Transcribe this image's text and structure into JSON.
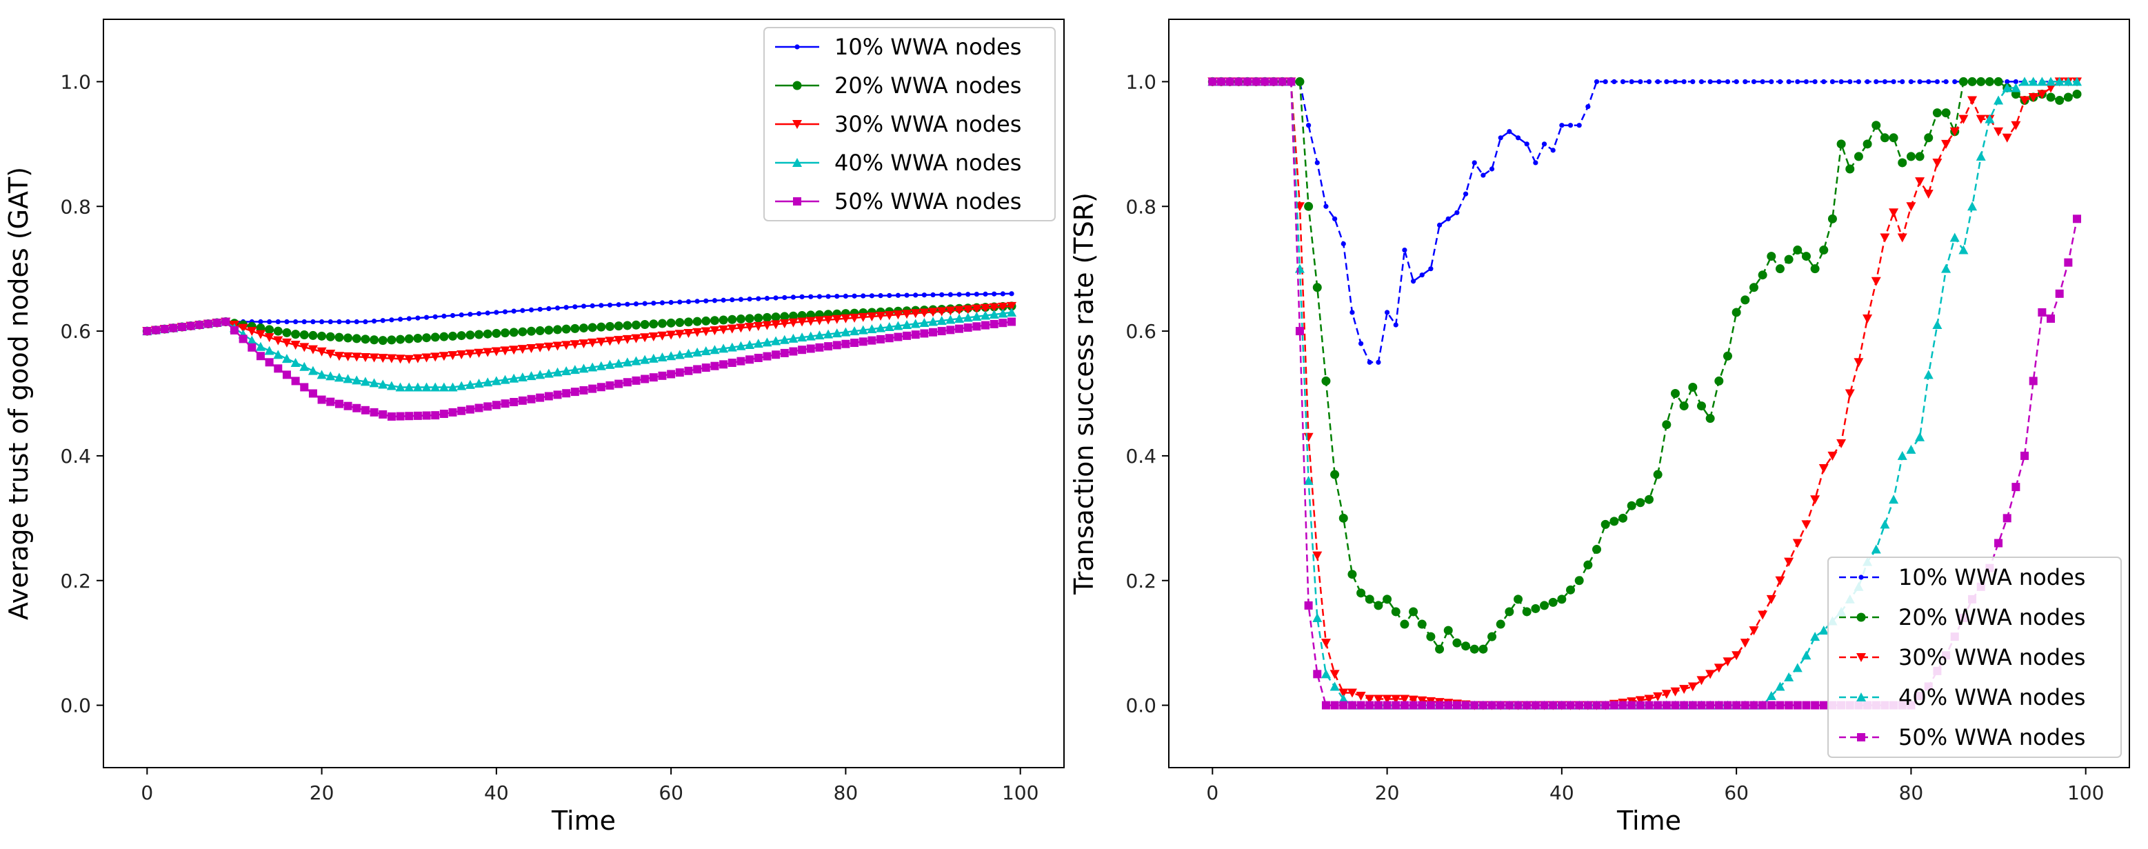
{
  "colors": {
    "10": "#0000ff",
    "20": "#008000",
    "30": "#ff0000",
    "40": "#00bfbf",
    "50": "#bf00bf"
  },
  "chart_data": [
    {
      "type": "line",
      "name": "gat",
      "xlabel": "Time",
      "ylabel": "Average trust of good nodes (GAT)",
      "xlim": [
        -5,
        105
      ],
      "ylim": [
        -0.1,
        1.1
      ],
      "xticks": [
        "0",
        "20",
        "40",
        "60",
        "80",
        "100"
      ],
      "yticks": [
        "0.0",
        "0.2",
        "0.4",
        "0.6",
        "0.8",
        "1.0"
      ],
      "legend_position": "top-right",
      "line_style": "solid",
      "series": [
        {
          "name": "10% WWA nodes",
          "marker": "dot",
          "color": "#0000ff",
          "keypoints": [
            [
              0,
              0.6
            ],
            [
              9,
              0.615
            ],
            [
              25,
              0.615
            ],
            [
              50,
              0.64
            ],
            [
              75,
              0.655
            ],
            [
              99,
              0.66
            ]
          ]
        },
        {
          "name": "20% WWA nodes",
          "marker": "circle",
          "color": "#008000",
          "keypoints": [
            [
              0,
              0.6
            ],
            [
              9,
              0.615
            ],
            [
              17,
              0.595
            ],
            [
              27,
              0.585
            ],
            [
              50,
              0.605
            ],
            [
              75,
              0.625
            ],
            [
              99,
              0.64
            ]
          ]
        },
        {
          "name": "30% WWA nodes",
          "marker": "triangle-down",
          "color": "#ff0000",
          "keypoints": [
            [
              0,
              0.6
            ],
            [
              9,
              0.615
            ],
            [
              15,
              0.585
            ],
            [
              22,
              0.56
            ],
            [
              30,
              0.555
            ],
            [
              50,
              0.58
            ],
            [
              75,
              0.615
            ],
            [
              99,
              0.64
            ]
          ]
        },
        {
          "name": "40% WWA nodes",
          "marker": "triangle-up",
          "color": "#00bfbf",
          "keypoints": [
            [
              0,
              0.6
            ],
            [
              9,
              0.615
            ],
            [
              13,
              0.575
            ],
            [
              20,
              0.53
            ],
            [
              29,
              0.51
            ],
            [
              35,
              0.51
            ],
            [
              50,
              0.54
            ],
            [
              75,
              0.59
            ],
            [
              99,
              0.63
            ]
          ]
        },
        {
          "name": "50% WWA nodes",
          "marker": "square",
          "color": "#bf00bf",
          "keypoints": [
            [
              0,
              0.6
            ],
            [
              9,
              0.615
            ],
            [
              13,
              0.56
            ],
            [
              20,
              0.49
            ],
            [
              28,
              0.463
            ],
            [
              33,
              0.465
            ],
            [
              50,
              0.505
            ],
            [
              75,
              0.57
            ],
            [
              99,
              0.615
            ]
          ]
        }
      ]
    },
    {
      "type": "line",
      "name": "tsr",
      "xlabel": "Time",
      "ylabel": "Transaction success rate (TSR)",
      "xlim": [
        -5,
        105
      ],
      "ylim": [
        -0.1,
        1.1
      ],
      "xticks": [
        "0",
        "20",
        "40",
        "60",
        "80",
        "100"
      ],
      "yticks": [
        "0.0",
        "0.2",
        "0.4",
        "0.6",
        "0.8",
        "1.0"
      ],
      "legend_position": "bottom-right",
      "line_style": "dashed",
      "series": [
        {
          "name": "10% WWA nodes",
          "marker": "dot",
          "color": "#0000ff",
          "keypoints": [
            [
              0,
              1.0
            ],
            [
              9,
              1.0
            ],
            [
              10,
              1.0
            ],
            [
              11,
              0.93
            ],
            [
              12,
              0.87
            ],
            [
              13,
              0.8
            ],
            [
              14,
              0.78
            ],
            [
              15,
              0.74
            ],
            [
              16,
              0.63
            ],
            [
              17,
              0.58
            ],
            [
              18,
              0.55
            ],
            [
              19,
              0.55
            ],
            [
              20,
              0.63
            ],
            [
              21,
              0.61
            ],
            [
              22,
              0.73
            ],
            [
              23,
              0.68
            ],
            [
              25,
              0.7
            ],
            [
              26,
              0.77
            ],
            [
              28,
              0.79
            ],
            [
              29,
              0.82
            ],
            [
              30,
              0.87
            ],
            [
              31,
              0.85
            ],
            [
              32,
              0.86
            ],
            [
              33,
              0.91
            ],
            [
              34,
              0.92
            ],
            [
              36,
              0.9
            ],
            [
              37,
              0.87
            ],
            [
              38,
              0.9
            ],
            [
              39,
              0.89
            ],
            [
              40,
              0.93
            ],
            [
              42,
              0.93
            ],
            [
              43,
              0.96
            ],
            [
              44,
              1.0
            ],
            [
              99,
              1.0
            ]
          ]
        },
        {
          "name": "20% WWA nodes",
          "marker": "circle",
          "color": "#008000",
          "keypoints": [
            [
              0,
              1.0
            ],
            [
              10,
              1.0
            ],
            [
              11,
              0.8
            ],
            [
              12,
              0.67
            ],
            [
              13,
              0.52
            ],
            [
              14,
              0.37
            ],
            [
              15,
              0.3
            ],
            [
              16,
              0.21
            ],
            [
              17,
              0.18
            ],
            [
              18,
              0.17
            ],
            [
              19,
              0.16
            ],
            [
              20,
              0.17
            ],
            [
              22,
              0.13
            ],
            [
              23,
              0.15
            ],
            [
              24,
              0.13
            ],
            [
              25,
              0.11
            ],
            [
              26,
              0.09
            ],
            [
              27,
              0.12
            ],
            [
              28,
              0.1
            ],
            [
              30,
              0.09
            ],
            [
              31,
              0.09
            ],
            [
              33,
              0.13
            ],
            [
              35,
              0.17
            ],
            [
              36,
              0.15
            ],
            [
              38,
              0.16
            ],
            [
              40,
              0.17
            ],
            [
              42,
              0.2
            ],
            [
              44,
              0.25
            ],
            [
              45,
              0.29
            ],
            [
              47,
              0.3
            ],
            [
              48,
              0.32
            ],
            [
              50,
              0.33
            ],
            [
              51,
              0.37
            ],
            [
              52,
              0.45
            ],
            [
              53,
              0.5
            ],
            [
              54,
              0.48
            ],
            [
              55,
              0.51
            ],
            [
              56,
              0.48
            ],
            [
              57,
              0.46
            ],
            [
              58,
              0.52
            ],
            [
              59,
              0.56
            ],
            [
              60,
              0.63
            ],
            [
              62,
              0.67
            ],
            [
              63,
              0.69
            ],
            [
              64,
              0.72
            ],
            [
              65,
              0.7
            ],
            [
              67,
              0.73
            ],
            [
              68,
              0.72
            ],
            [
              69,
              0.7
            ],
            [
              70,
              0.73
            ],
            [
              71,
              0.78
            ],
            [
              72,
              0.9
            ],
            [
              73,
              0.86
            ],
            [
              75,
              0.9
            ],
            [
              76,
              0.93
            ],
            [
              77,
              0.91
            ],
            [
              78,
              0.91
            ],
            [
              79,
              0.87
            ],
            [
              80,
              0.88
            ],
            [
              81,
              0.88
            ],
            [
              82,
              0.91
            ],
            [
              83,
              0.95
            ],
            [
              84,
              0.95
            ],
            [
              85,
              0.92
            ],
            [
              86,
              1.0
            ],
            [
              90,
              1.0
            ],
            [
              91,
              0.99
            ],
            [
              93,
              0.97
            ],
            [
              95,
              0.98
            ],
            [
              97,
              0.97
            ],
            [
              99,
              0.98
            ]
          ]
        },
        {
          "name": "30% WWA nodes",
          "marker": "triangle-down",
          "color": "#ff0000",
          "keypoints": [
            [
              0,
              1.0
            ],
            [
              9,
              1.0
            ],
            [
              10,
              0.8
            ],
            [
              11,
              0.43
            ],
            [
              12,
              0.24
            ],
            [
              13,
              0.1
            ],
            [
              14,
              0.05
            ],
            [
              15,
              0.02
            ],
            [
              16,
              0.02
            ],
            [
              18,
              0.01
            ],
            [
              20,
              0.01
            ],
            [
              22,
              0.01
            ],
            [
              30,
              0.0
            ],
            [
              45,
              0.0
            ],
            [
              50,
              0.01
            ],
            [
              55,
              0.03
            ],
            [
              57,
              0.05
            ],
            [
              60,
              0.08
            ],
            [
              62,
              0.12
            ],
            [
              64,
              0.17
            ],
            [
              66,
              0.23
            ],
            [
              68,
              0.29
            ],
            [
              69,
              0.33
            ],
            [
              70,
              0.38
            ],
            [
              72,
              0.42
            ],
            [
              73,
              0.5
            ],
            [
              74,
              0.55
            ],
            [
              75,
              0.62
            ],
            [
              76,
              0.68
            ],
            [
              77,
              0.75
            ],
            [
              78,
              0.79
            ],
            [
              79,
              0.75
            ],
            [
              80,
              0.8
            ],
            [
              81,
              0.84
            ],
            [
              82,
              0.82
            ],
            [
              83,
              0.87
            ],
            [
              84,
              0.9
            ],
            [
              85,
              0.92
            ],
            [
              86,
              0.94
            ],
            [
              87,
              0.97
            ],
            [
              88,
              0.94
            ],
            [
              89,
              0.94
            ],
            [
              90,
              0.92
            ],
            [
              91,
              0.91
            ],
            [
              92,
              0.93
            ],
            [
              93,
              0.97
            ],
            [
              95,
              0.98
            ],
            [
              97,
              1.0
            ],
            [
              99,
              1.0
            ]
          ]
        },
        {
          "name": "40% WWA nodes",
          "marker": "triangle-up",
          "color": "#00bfbf",
          "keypoints": [
            [
              0,
              1.0
            ],
            [
              9,
              1.0
            ],
            [
              10,
              0.7
            ],
            [
              11,
              0.36
            ],
            [
              12,
              0.14
            ],
            [
              13,
              0.05
            ],
            [
              14,
              0.03
            ],
            [
              15,
              0.01
            ],
            [
              16,
              0.0
            ],
            [
              60,
              0.0
            ],
            [
              63,
              0.0
            ],
            [
              65,
              0.03
            ],
            [
              67,
              0.06
            ],
            [
              68,
              0.08
            ],
            [
              69,
              0.11
            ],
            [
              70,
              0.12
            ],
            [
              72,
              0.15
            ],
            [
              73,
              0.17
            ],
            [
              74,
              0.19
            ],
            [
              75,
              0.23
            ],
            [
              76,
              0.25
            ],
            [
              77,
              0.29
            ],
            [
              78,
              0.33
            ],
            [
              79,
              0.4
            ],
            [
              80,
              0.41
            ],
            [
              81,
              0.43
            ],
            [
              82,
              0.53
            ],
            [
              83,
              0.61
            ],
            [
              84,
              0.7
            ],
            [
              85,
              0.75
            ],
            [
              86,
              0.73
            ],
            [
              87,
              0.8
            ],
            [
              88,
              0.88
            ],
            [
              89,
              0.94
            ],
            [
              90,
              0.97
            ],
            [
              91,
              0.99
            ],
            [
              92,
              0.99
            ],
            [
              93,
              1.0
            ],
            [
              99,
              1.0
            ]
          ]
        },
        {
          "name": "50% WWA nodes",
          "marker": "square",
          "color": "#bf00bf",
          "keypoints": [
            [
              0,
              1.0
            ],
            [
              9,
              1.0
            ],
            [
              10,
              0.6
            ],
            [
              11,
              0.16
            ],
            [
              12,
              0.05
            ],
            [
              13,
              0.0
            ],
            [
              80,
              0.0
            ],
            [
              82,
              0.03
            ],
            [
              84,
              0.08
            ],
            [
              86,
              0.14
            ],
            [
              87,
              0.17
            ],
            [
              88,
              0.19
            ],
            [
              89,
              0.22
            ],
            [
              90,
              0.26
            ],
            [
              91,
              0.3
            ],
            [
              92,
              0.35
            ],
            [
              93,
              0.4
            ],
            [
              94,
              0.52
            ],
            [
              95,
              0.63
            ],
            [
              96,
              0.62
            ],
            [
              97,
              0.66
            ],
            [
              98,
              0.71
            ],
            [
              99,
              0.78
            ]
          ]
        }
      ]
    }
  ]
}
